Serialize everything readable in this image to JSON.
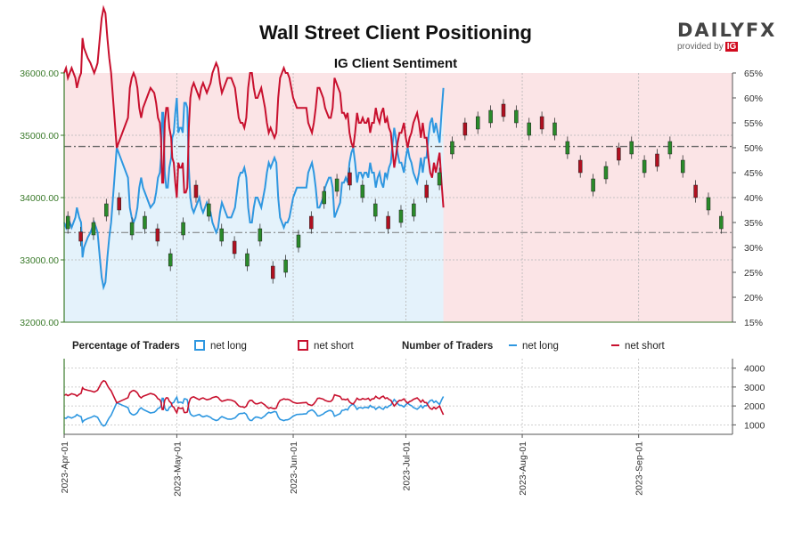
{
  "header": {
    "title": "Wall Street Client Positioning",
    "subtitle": "IG Client Sentiment",
    "brand_name": "DAILYFX",
    "brand_provider": "provided by",
    "brand_ig": "IG"
  },
  "colors": {
    "long": "#2e97e0",
    "short": "#c8102e",
    "long_zone": "#e4f2fb",
    "short_zone": "#fbe4e6",
    "candle_up": "#2a8a2a",
    "candle_down": "#b01020",
    "left_axis": "#3a7a2a"
  },
  "legend": {
    "percentage_heading": "Percentage of Traders",
    "number_heading": "Number of Traders",
    "net_long": "net long",
    "net_short": "net short"
  },
  "chart_data": [
    {
      "type": "candlestick",
      "title": "Wall Street Client Positioning",
      "subtitle": "IG Client Sentiment",
      "left_axis": {
        "min": 32000,
        "max": 36000,
        "ticks": [
          "32000.00",
          "33000.00",
          "34000.00",
          "35000.00",
          "36000.00"
        ]
      },
      "right_axis": {
        "min": 15,
        "max": 65,
        "unit": "%",
        "ticks": [
          "15%",
          "20%",
          "25%",
          "30%",
          "35%",
          "40%",
          "45%",
          "50%",
          "55%",
          "60%",
          "65%"
        ]
      },
      "reference_lines": {
        "upper": 34820,
        "lower": 33440
      },
      "series": [
        {
          "name": "net long",
          "points": [
            [
              0,
              35
            ],
            [
              0.5,
              34
            ],
            [
              1,
              36
            ],
            [
              1.5,
              35
            ],
            [
              2,
              34
            ],
            [
              2.5,
              35
            ],
            [
              3,
              36
            ],
            [
              3.4,
              38
            ],
            [
              4,
              36
            ],
            [
              4.5,
              35
            ],
            [
              4.9,
              28
            ],
            [
              5.3,
              30
            ],
            [
              5.8,
              31
            ],
            [
              6.3,
              32
            ],
            [
              7,
              33
            ],
            [
              7.5,
              34
            ],
            [
              8,
              35
            ],
            [
              8.5,
              34
            ],
            [
              8.9,
              33
            ],
            [
              9.5,
              28
            ],
            [
              10,
              24
            ],
            [
              10.5,
              22
            ],
            [
              11,
              23
            ],
            [
              11.5,
              28
            ],
            [
              12,
              32
            ],
            [
              12.5,
              35
            ],
            [
              13,
              40
            ],
            [
              13.5,
              45
            ],
            [
              14,
              50
            ],
            [
              14.5,
              49
            ],
            [
              15,
              48
            ],
            [
              15.5,
              47
            ],
            [
              16,
              46
            ],
            [
              16.5,
              45
            ],
            [
              17,
              44
            ],
            [
              17.5,
              38
            ],
            [
              18,
              36
            ],
            [
              18.5,
              35
            ],
            [
              19,
              36
            ],
            [
              19.5,
              38
            ],
            [
              20,
              42
            ],
            [
              20.5,
              44
            ],
            [
              21,
              42
            ],
            [
              21.5,
              41
            ],
            [
              22,
              40
            ],
            [
              22.5,
              39
            ],
            [
              23,
              38
            ],
            [
              23.5,
              38.5
            ],
            [
              24,
              39
            ],
            [
              24.5,
              41
            ],
            [
              25,
              44
            ],
            [
              25.5,
              45
            ],
            [
              25.8,
              48
            ],
            [
              26.1,
              57
            ],
            [
              26.4,
              57
            ],
            [
              26.8,
              45
            ],
            [
              27.2,
              42
            ],
            [
              27.6,
              42
            ],
            [
              28,
              46
            ],
            [
              28.5,
              48
            ],
            [
              28.8,
              52
            ],
            [
              29.2,
              53
            ],
            [
              29.6,
              57
            ],
            [
              30,
              60
            ],
            [
              30.4,
              53
            ],
            [
              30.8,
              54
            ],
            [
              31.2,
              54
            ],
            [
              31.6,
              53
            ],
            [
              32,
              59
            ],
            [
              32.4,
              59
            ],
            [
              32.8,
              58
            ],
            [
              33.2,
              46
            ],
            [
              33.6,
              40
            ],
            [
              34,
              38
            ],
            [
              34.5,
              37
            ],
            [
              35,
              38
            ],
            [
              35.5,
              39
            ],
            [
              36,
              40
            ],
            [
              36.5,
              38
            ],
            [
              37,
              37
            ],
            [
              37.5,
              38
            ],
            [
              38,
              39
            ],
            [
              38.5,
              38
            ],
            [
              39,
              37
            ],
            [
              39.5,
              35
            ],
            [
              40,
              34
            ],
            [
              40.5,
              33
            ],
            [
              41,
              34
            ],
            [
              41.5,
              37
            ],
            [
              42,
              39
            ],
            [
              42.5,
              38
            ],
            [
              43,
              37
            ],
            [
              43.5,
              36
            ],
            [
              44,
              36
            ],
            [
              44.5,
              36
            ],
            [
              45,
              37
            ],
            [
              45.5,
              38
            ],
            [
              46,
              41
            ],
            [
              46.5,
              44
            ],
            [
              47,
              45
            ],
            [
              47.5,
              45
            ],
            [
              48,
              46
            ],
            [
              48.5,
              44
            ],
            [
              49,
              38
            ],
            [
              49.5,
              35
            ],
            [
              50,
              35
            ],
            [
              50.5,
              38
            ],
            [
              51,
              40
            ],
            [
              51.5,
              40
            ],
            [
              52,
              39
            ],
            [
              52.5,
              38
            ],
            [
              53,
              40
            ],
            [
              53.5,
              42
            ],
            [
              54,
              45
            ],
            [
              54.5,
              47
            ],
            [
              55,
              46
            ],
            [
              55.5,
              47
            ],
            [
              56,
              48
            ],
            [
              56.5,
              47
            ],
            [
              57,
              40
            ],
            [
              57.5,
              36
            ],
            [
              58,
              35
            ],
            [
              58.5,
              34
            ],
            [
              59,
              35
            ],
            [
              59.5,
              35
            ],
            [
              60,
              36
            ],
            [
              60.5,
              38
            ],
            [
              61,
              40
            ],
            [
              61.5,
              41
            ],
            [
              62,
              42
            ],
            [
              62.5,
              42
            ],
            [
              63,
              42
            ],
            [
              63.5,
              42
            ],
            [
              64,
              42
            ],
            [
              64.5,
              42
            ],
            [
              65,
              45
            ],
            [
              65.5,
              46
            ],
            [
              66,
              47
            ],
            [
              66.5,
              45
            ],
            [
              67,
              42
            ],
            [
              67.5,
              38
            ],
            [
              68,
              38
            ],
            [
              68.5,
              39
            ],
            [
              69,
              40
            ],
            [
              69.5,
              42
            ],
            [
              70,
              43
            ],
            [
              70.5,
              44
            ],
            [
              71,
              44
            ],
            [
              71.5,
              42
            ],
            [
              72,
              36
            ],
            [
              72.5,
              37
            ],
            [
              73,
              38
            ],
            [
              73.5,
              39
            ],
            [
              74,
              43
            ],
            [
              74.5,
              43
            ],
            [
              75,
              44
            ],
            [
              75.5,
              43
            ],
            [
              76,
              47
            ],
            [
              76.5,
              49
            ],
            [
              77,
              50
            ],
            [
              77.5,
              47
            ],
            [
              78,
              43
            ],
            [
              78.5,
              45
            ],
            [
              79,
              45
            ],
            [
              79.5,
              44
            ],
            [
              80,
              45
            ],
            [
              80.5,
              45
            ],
            [
              81,
              44
            ],
            [
              81.5,
              47
            ],
            [
              82,
              45
            ],
            [
              82.5,
              45
            ],
            [
              83,
              42
            ],
            [
              83.5,
              44
            ],
            [
              84,
              45
            ],
            [
              84.5,
              43
            ],
            [
              85,
              42
            ],
            [
              85.5,
              45
            ],
            [
              86,
              44
            ],
            [
              86.5,
              46
            ],
            [
              87,
              47
            ],
            [
              87.5,
              51
            ],
            [
              87.9,
              54
            ],
            [
              88.3,
              52
            ],
            [
              88.8,
              49
            ],
            [
              89.3,
              47
            ],
            [
              89.8,
              47
            ],
            [
              90.5,
              45
            ],
            [
              91,
              48
            ],
            [
              91.5,
              50
            ],
            [
              92,
              48
            ],
            [
              92.5,
              47
            ],
            [
              93,
              45
            ],
            [
              93.5,
              44
            ],
            [
              94,
              43
            ],
            [
              94.5,
              45
            ],
            [
              95,
              48
            ],
            [
              95.5,
              45
            ],
            [
              96,
              48
            ],
            [
              96.5,
              48
            ],
            [
              97,
              52
            ],
            [
              97.5,
              55
            ],
            [
              98,
              56
            ],
            [
              98.5,
              53
            ],
            [
              99,
              55
            ],
            [
              99.5,
              53
            ],
            [
              100,
              51
            ],
            [
              100.5,
              57
            ],
            [
              101,
              62
            ]
          ]
        },
        {
          "name": "net short"
        }
      ],
      "candles_ohlc_sample": [
        [
          33700,
          33500
        ],
        [
          33450,
          33300
        ],
        [
          33600,
          33400
        ],
        [
          33900,
          33700
        ],
        [
          34000,
          33800
        ],
        [
          33600,
          33400
        ],
        [
          33700,
          33500
        ],
        [
          33500,
          33300
        ],
        [
          33100,
          32900
        ],
        [
          33600,
          33400
        ],
        [
          34200,
          34000
        ],
        [
          33900,
          33700
        ],
        [
          33500,
          33300
        ],
        [
          33300,
          33100
        ],
        [
          33100,
          32900
        ],
        [
          33500,
          33300
        ],
        [
          32900,
          32700
        ],
        [
          33000,
          32800
        ],
        [
          33400,
          33200
        ],
        [
          33700,
          33500
        ],
        [
          34100,
          33900
        ],
        [
          34300,
          34100
        ],
        [
          34400,
          34200
        ],
        [
          34200,
          34000
        ],
        [
          33900,
          33700
        ],
        [
          33700,
          33500
        ],
        [
          33800,
          33600
        ],
        [
          33900,
          33700
        ],
        [
          34200,
          34000
        ],
        [
          34400,
          34200
        ],
        [
          34900,
          34700
        ],
        [
          35200,
          35000
        ],
        [
          35300,
          35100
        ],
        [
          35400,
          35200
        ],
        [
          35500,
          35300
        ],
        [
          35400,
          35200
        ],
        [
          35200,
          35000
        ],
        [
          35300,
          35100
        ],
        [
          35200,
          35000
        ],
        [
          34900,
          34700
        ],
        [
          34600,
          34400
        ],
        [
          34300,
          34100
        ],
        [
          34500,
          34300
        ],
        [
          34800,
          34600
        ],
        [
          34900,
          34700
        ],
        [
          34600,
          34400
        ],
        [
          34700,
          34500
        ],
        [
          34900,
          34700
        ],
        [
          34600,
          34400
        ],
        [
          34200,
          34000
        ],
        [
          34000,
          33800
        ],
        [
          33700,
          33500
        ]
      ]
    },
    {
      "type": "line",
      "title": "Number of Traders",
      "right_axis": {
        "min": 500,
        "max": 4500,
        "ticks": [
          "1000",
          "2000",
          "3000",
          "4000"
        ]
      },
      "series": [
        {
          "name": "net long"
        },
        {
          "name": "net short"
        }
      ]
    }
  ],
  "x_axis": {
    "labels": [
      "2023-Apr-01",
      "2023-May-01",
      "2023-Jun-01",
      "2023-Jul-01",
      "2023-Aug-01",
      "2023-Sep-01"
    ],
    "label_offsets_days": [
      0,
      30,
      61,
      91,
      122,
      153
    ],
    "total_days": 178
  }
}
